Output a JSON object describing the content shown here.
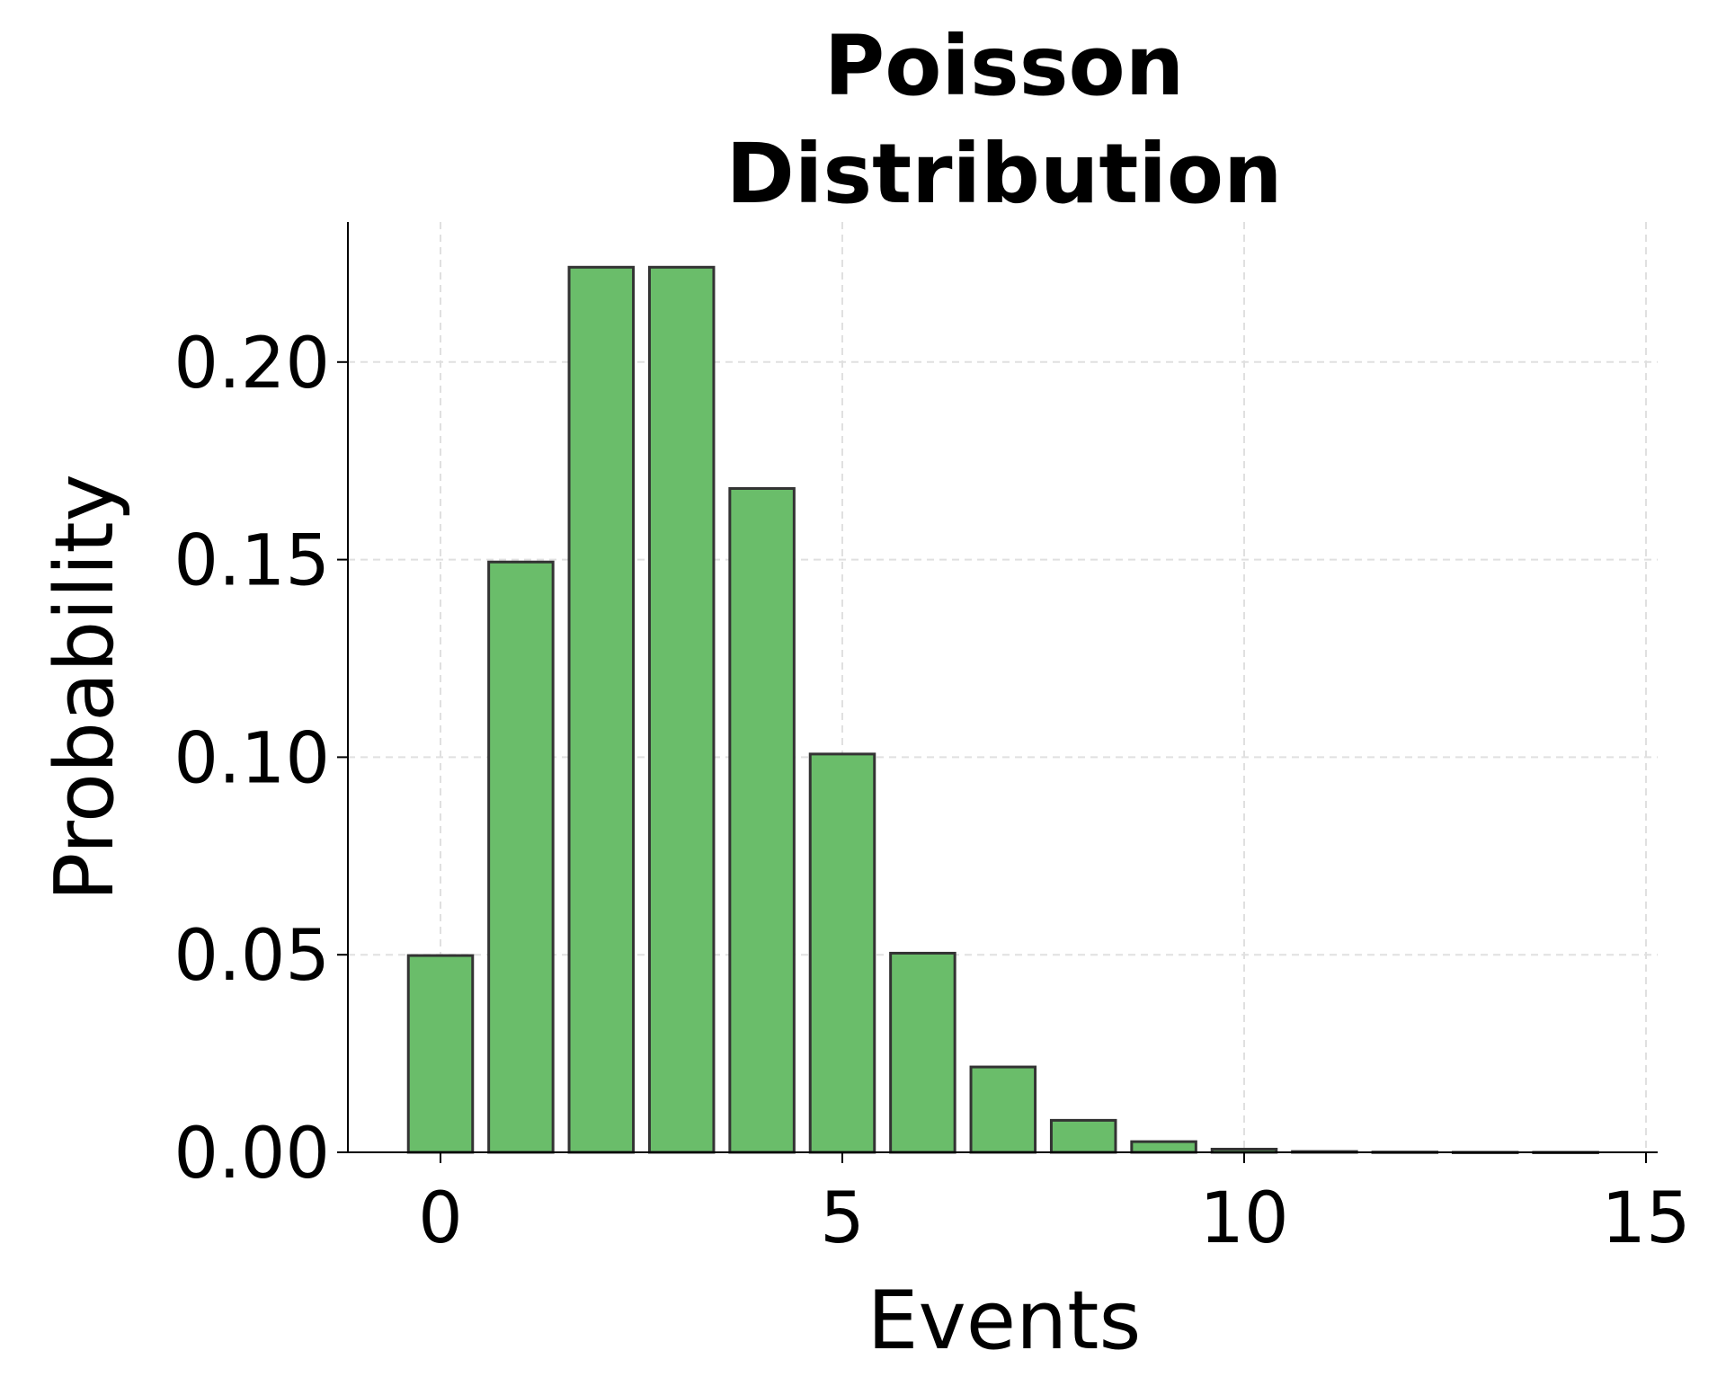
{
  "chart_data": {
    "type": "bar",
    "title_lines": [
      "Poisson",
      "Distribution"
    ],
    "xlabel": "Events",
    "ylabel": "Probability",
    "x": [
      0,
      1,
      2,
      3,
      4,
      5,
      6,
      7,
      8,
      9,
      10,
      11,
      12,
      13,
      14
    ],
    "values": [
      0.0498,
      0.1494,
      0.224,
      0.224,
      0.168,
      0.1008,
      0.0504,
      0.0216,
      0.0081,
      0.0027,
      0.0008,
      0.0002,
      6e-05,
      1e-05,
      3e-06
    ],
    "xlim": [
      -1.15,
      15.15
    ],
    "ylim": [
      0,
      0.235
    ],
    "xticks": [
      0,
      5,
      10,
      15
    ],
    "xtick_labels": [
      "0",
      "5",
      "10",
      "15"
    ],
    "yticks": [
      0,
      0.05,
      0.1,
      0.15,
      0.2
    ],
    "ytick_labels": [
      "0.00",
      "0.05",
      "0.10",
      "0.15",
      "0.20"
    ],
    "grid": true,
    "bar_color": "#6abd6a",
    "edge_color": "#333333"
  }
}
